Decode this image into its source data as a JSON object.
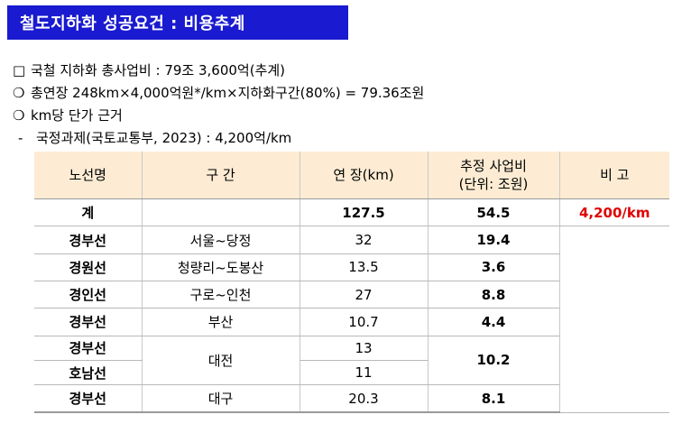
{
  "title": "철도지하화 성공요건 : 비용추계",
  "notes": [
    {
      "mark": "□",
      "text": "국철 지하화 총사업비 : 79조 3,600억(추계)"
    },
    {
      "mark": "❍",
      "text": "총연장 248km×4,000억원*/km×지하화구간(80%) = 79.36조원"
    },
    {
      "mark": "❍",
      "text": "km당 단가 근거"
    },
    {
      "mark": "-",
      "text": "국정과제(국토교통부, 2023) : 4,200억/km"
    }
  ],
  "table": {
    "headers": {
      "line": "노선명",
      "section": "구 간",
      "length": "연 장(km)",
      "cost_line1": "추정 사업비",
      "cost_line2": "(단위: 조원)",
      "remark": "비 고"
    },
    "total": {
      "line": "계",
      "section": "",
      "length": "127.5",
      "cost": "54.5",
      "remark": "4,200/km"
    },
    "rows": [
      {
        "line": "경부선",
        "section": "서울~당정",
        "length": "32",
        "cost": "19.4"
      },
      {
        "line": "경원선",
        "section": "청량리~도봉산",
        "length": "13.5",
        "cost": "3.6"
      },
      {
        "line": "경인선",
        "section": "구로~인천",
        "length": "27",
        "cost": "8.8"
      },
      {
        "line": "경부선",
        "section": "부산",
        "length": "10.7",
        "cost": "4.4"
      }
    ],
    "daejeon": {
      "line_a": "경부선",
      "line_b": "호남선",
      "section": "대전",
      "length_a": "13",
      "length_b": "11",
      "cost": "10.2"
    },
    "last": {
      "line": "경부선",
      "section": "대구",
      "length": "20.3",
      "cost": "8.1"
    }
  },
  "colors": {
    "title_bg": "#1a1ad0",
    "header_bg": "#fdecd3",
    "remark_red": "#e00000"
  }
}
